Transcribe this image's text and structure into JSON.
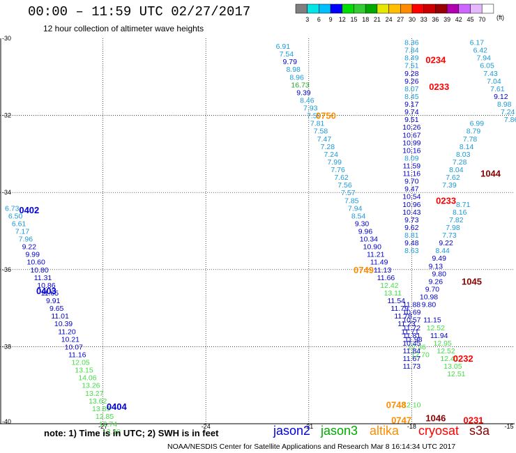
{
  "header": {
    "title": "00:00 – 11:59 UTC 02/27/2017",
    "subtitle": "12 hour collection of altimeter wave heights"
  },
  "footer": {
    "note": "note:  1) Time is in UTC; 2) SWH is in feet",
    "credit": "NOAA/NESDIS Center for Satellite Applications and Research    Mar  8 16:14:34 UTC 2017"
  },
  "satellites": [
    {
      "name": "jason2",
      "color": "#0000dd"
    },
    {
      "name": "jason3",
      "color": "#00aa00"
    },
    {
      "name": "altika",
      "color": "#ff8c00"
    },
    {
      "name": "cryosat",
      "color": "#ff0000"
    },
    {
      "name": "s3a",
      "color": "#880000"
    }
  ],
  "color_scale": {
    "unit": "(ft)",
    "ticks": [
      "3",
      "6",
      "9",
      "12",
      "15",
      "18",
      "21",
      "24",
      "27",
      "30",
      "33",
      "36",
      "39",
      "42",
      "45",
      "70"
    ],
    "colors": [
      "#7f7f7f",
      "#00e6e6",
      "#00bfff",
      "#0000ff",
      "#00dd00",
      "#33cc33",
      "#00a800",
      "#e6e600",
      "#ffbf00",
      "#ff8c00",
      "#ff0000",
      "#cc0000",
      "#990000",
      "#b000b0",
      "#cc66ff",
      "#e6b8ff",
      "#ffffff"
    ]
  },
  "chart_data": {
    "type": "scatter",
    "title": "00:00 – 11:59 UTC 02/27/2017",
    "xlim": [
      -30,
      -15
    ],
    "ylim": [
      -40,
      -30
    ],
    "xticks": [
      "-27",
      "-24",
      "-21",
      "-18",
      "-15"
    ],
    "yticks": [
      "-30",
      "-32",
      "-34",
      "-36",
      "-38",
      "-40"
    ],
    "grid": true,
    "series": [
      {
        "name": "jason2",
        "time_labels": [
          {
            "text": "0402",
            "x": -29.15,
            "y": -34.45
          },
          {
            "text": "0403",
            "x": -28.65,
            "y": -36.55
          },
          {
            "text": "0404",
            "x": -26.6,
            "y": -39.55
          }
        ],
        "points": [
          [
            -29.65,
            -34.4,
            6.73
          ],
          [
            -29.55,
            -34.6,
            6.5
          ],
          [
            -29.45,
            -34.8,
            6.61
          ],
          [
            -29.35,
            -35.0,
            7.17
          ],
          [
            -29.25,
            -35.2,
            7.96
          ],
          [
            -29.15,
            -35.4,
            9.22
          ],
          [
            -29.05,
            -35.6,
            9.99
          ],
          [
            -28.95,
            -35.8,
            10.6
          ],
          [
            -28.85,
            -36.0,
            10.8
          ],
          [
            -28.75,
            -36.2,
            11.31
          ],
          [
            -28.65,
            -36.4,
            10.86
          ],
          [
            -28.55,
            -36.6,
            11.65
          ],
          [
            -28.45,
            -36.8,
            9.91
          ],
          [
            -28.35,
            -37.0,
            9.65
          ],
          [
            -28.25,
            -37.2,
            11.01
          ],
          [
            -28.15,
            -37.4,
            10.39
          ],
          [
            -28.05,
            -37.6,
            11.2
          ],
          [
            -27.95,
            -37.8,
            10.21
          ],
          [
            -27.85,
            -38.0,
            10.07
          ],
          [
            -27.75,
            -38.2,
            11.16
          ],
          [
            -27.65,
            -38.4,
            12.05
          ],
          [
            -27.55,
            -38.6,
            13.15
          ],
          [
            -27.45,
            -38.8,
            14.06
          ],
          [
            -27.35,
            -39.0,
            13.26
          ],
          [
            -27.25,
            -39.2,
            13.27
          ],
          [
            -27.15,
            -39.4,
            13.62
          ],
          [
            -27.05,
            -39.6,
            13.89
          ],
          [
            -26.95,
            -39.8,
            12.85
          ],
          [
            -26.85,
            -40.0,
            12.74
          ],
          [
            -26.75,
            -40.2,
            13.3
          ],
          [
            -21.75,
            -30.2,
            6.91
          ],
          [
            -21.65,
            -30.4,
            7.54
          ],
          [
            -21.55,
            -30.6,
            9.79
          ],
          [
            -21.45,
            -30.8,
            8.98
          ],
          [
            -21.35,
            -31.0,
            8.96
          ],
          [
            -21.25,
            -31.2,
            16.73
          ],
          [
            -21.15,
            -31.4,
            9.39
          ],
          [
            -21.05,
            -31.6,
            8.46
          ],
          [
            -20.95,
            -31.8,
            7.93
          ],
          [
            -20.85,
            -32.0,
            7.59
          ],
          [
            -20.75,
            -32.2,
            7.81
          ],
          [
            -20.65,
            -32.4,
            7.58
          ],
          [
            -20.55,
            -32.6,
            7.47
          ],
          [
            -20.45,
            -32.8,
            7.28
          ],
          [
            -20.35,
            -33.0,
            7.24
          ],
          [
            -20.25,
            -33.2,
            7.99
          ],
          [
            -20.15,
            -33.4,
            7.76
          ],
          [
            -20.05,
            -33.6,
            7.62
          ],
          [
            -19.95,
            -33.8,
            7.56
          ],
          [
            -19.85,
            -34.0,
            7.57
          ],
          [
            -19.75,
            -34.2,
            7.85
          ],
          [
            -19.65,
            -34.4,
            7.94
          ],
          [
            -19.55,
            -34.6,
            8.54
          ],
          [
            -19.45,
            -34.8,
            9.3
          ],
          [
            -19.35,
            -35.0,
            9.96
          ],
          [
            -19.25,
            -35.2,
            10.34
          ],
          [
            -19.15,
            -35.4,
            10.9
          ],
          [
            -19.05,
            -35.6,
            11.21
          ],
          [
            -18.95,
            -35.8,
            11.49
          ],
          [
            -18.85,
            -36.0,
            11.13
          ],
          [
            -18.75,
            -36.2,
            11.66
          ],
          [
            -18.65,
            -36.4,
            12.42
          ],
          [
            -18.55,
            -36.6,
            13.11
          ],
          [
            -18.45,
            -36.8,
            11.54
          ],
          [
            -18.35,
            -37.0,
            11.79
          ],
          [
            -18.25,
            -37.2,
            11.78
          ],
          [
            -18.15,
            -37.4,
            11.23
          ],
          [
            -18.05,
            -37.6,
            11.71
          ],
          [
            -17.95,
            -37.8,
            11.98
          ],
          [
            -17.85,
            -38.0,
            12.36
          ],
          [
            -17.75,
            -38.2,
            12.7
          ]
        ]
      },
      {
        "name": "jason3",
        "time_labels": [],
        "points": [
          [
            -18.0,
            -39.5,
            12.1
          ]
        ]
      },
      {
        "name": "altika",
        "time_labels": [
          {
            "text": "0750",
            "x": -20.5,
            "y": -32.0
          },
          {
            "text": "0749",
            "x": -19.4,
            "y": -36.0
          },
          {
            "text": "0748",
            "x": -18.45,
            "y": -39.5
          },
          {
            "text": "0747",
            "x": -18.3,
            "y": -39.9
          }
        ],
        "points": []
      },
      {
        "name": "cryosat",
        "time_labels": [
          {
            "text": "0234",
            "x": -17.3,
            "y": -30.55
          },
          {
            "text": "0233",
            "x": -17.2,
            "y": -31.25
          },
          {
            "text": "0233",
            "x": -17.0,
            "y": -34.2
          },
          {
            "text": "0232",
            "x": -16.5,
            "y": -38.3
          },
          {
            "text": "0231",
            "x": -16.2,
            "y": -39.9
          }
        ],
        "points": [
          [
            -18.0,
            -30.1,
            8.36
          ],
          [
            -18.0,
            -30.3,
            7.84
          ],
          [
            -18.0,
            -30.5,
            8.49
          ],
          [
            -18.0,
            -30.7,
            7.51
          ],
          [
            -18.0,
            -30.9,
            9.28
          ],
          [
            -18.0,
            -31.1,
            9.26
          ],
          [
            -18.0,
            -31.3,
            8.07
          ],
          [
            -18.0,
            -31.5,
            8.45
          ],
          [
            -18.0,
            -31.7,
            9.17
          ],
          [
            -18.0,
            -31.9,
            9.74
          ],
          [
            -18.0,
            -32.1,
            9.51
          ],
          [
            -18.0,
            -32.3,
            10.26
          ],
          [
            -18.0,
            -32.5,
            10.67
          ],
          [
            -18.0,
            -32.7,
            10.99
          ],
          [
            -18.0,
            -32.9,
            10.16
          ],
          [
            -18.0,
            -33.1,
            8.09
          ],
          [
            -18.0,
            -33.3,
            11.59
          ],
          [
            -18.0,
            -33.5,
            11.16
          ],
          [
            -18.0,
            -33.7,
            9.7
          ],
          [
            -18.0,
            -33.9,
            9.47
          ],
          [
            -18.0,
            -34.1,
            10.54
          ],
          [
            -18.0,
            -34.3,
            10.96
          ],
          [
            -18.0,
            -34.5,
            10.43
          ],
          [
            -18.0,
            -34.7,
            9.73
          ],
          [
            -18.0,
            -34.9,
            9.62
          ],
          [
            -18.0,
            -35.1,
            8.81
          ],
          [
            -18.0,
            -35.3,
            9.48
          ],
          [
            -18.0,
            -35.5,
            8.63
          ],
          [
            -18.0,
            -36.9,
            11.88
          ],
          [
            -18.0,
            -37.1,
            10.69
          ],
          [
            -18.0,
            -37.3,
            10.57
          ],
          [
            -18.0,
            -37.5,
            11.72
          ],
          [
            -18.0,
            -37.7,
            11.81
          ],
          [
            -18.0,
            -37.9,
            10.45
          ],
          [
            -18.0,
            -38.1,
            11.84
          ],
          [
            -18.0,
            -38.3,
            11.67
          ],
          [
            -18.0,
            -38.5,
            11.73
          ]
        ]
      },
      {
        "name": "s3a",
        "time_labels": [
          {
            "text": "1045",
            "x": -16.25,
            "y": -36.3
          },
          {
            "text": "1044",
            "x": -15.7,
            "y": -33.5
          },
          {
            "text": "1046",
            "x": -17.3,
            "y": -39.85
          }
        ],
        "points": [
          [
            -16.1,
            -30.1,
            6.17
          ],
          [
            -16.0,
            -30.3,
            6.42
          ],
          [
            -15.9,
            -30.5,
            7.94
          ],
          [
            -15.8,
            -30.7,
            6.05
          ],
          [
            -15.7,
            -30.9,
            7.43
          ],
          [
            -15.6,
            -31.1,
            7.04
          ],
          [
            -15.5,
            -31.3,
            7.61
          ],
          [
            -15.4,
            -31.5,
            9.12
          ],
          [
            -15.3,
            -31.7,
            8.98
          ],
          [
            -15.2,
            -31.9,
            7.24
          ],
          [
            -15.1,
            -32.1,
            7.86
          ],
          [
            -16.1,
            -32.2,
            6.99
          ],
          [
            -16.2,
            -32.4,
            8.79
          ],
          [
            -16.3,
            -32.6,
            7.78
          ],
          [
            -16.4,
            -32.8,
            8.14
          ],
          [
            -16.5,
            -33.0,
            8.03
          ],
          [
            -16.6,
            -33.2,
            7.28
          ],
          [
            -16.7,
            -33.4,
            8.04
          ],
          [
            -16.8,
            -33.6,
            7.62
          ],
          [
            -16.9,
            -33.8,
            7.39
          ],
          [
            -16.5,
            -34.3,
            8.71
          ],
          [
            -16.6,
            -34.5,
            8.16
          ],
          [
            -16.7,
            -34.7,
            7.82
          ],
          [
            -16.8,
            -34.9,
            7.98
          ],
          [
            -16.9,
            -35.1,
            7.73
          ],
          [
            -17.0,
            -35.3,
            9.22
          ],
          [
            -17.1,
            -35.5,
            8.44
          ],
          [
            -17.2,
            -35.7,
            9.49
          ],
          [
            -17.3,
            -35.9,
            9.13
          ],
          [
            -17.2,
            -36.1,
            9.8
          ],
          [
            -17.3,
            -36.3,
            9.26
          ],
          [
            -17.4,
            -36.5,
            9.7
          ],
          [
            -17.5,
            -36.7,
            10.98
          ],
          [
            -17.5,
            -36.9,
            9.8
          ],
          [
            -17.4,
            -37.3,
            11.15
          ],
          [
            -17.3,
            -37.5,
            12.52
          ],
          [
            -17.2,
            -37.7,
            11.94
          ],
          [
            -17.1,
            -37.9,
            12.95
          ],
          [
            -17.0,
            -38.1,
            12.52
          ],
          [
            -16.9,
            -38.3,
            12.41
          ],
          [
            -16.8,
            -38.5,
            13.05
          ],
          [
            -16.7,
            -38.7,
            12.51
          ]
        ]
      }
    ]
  }
}
